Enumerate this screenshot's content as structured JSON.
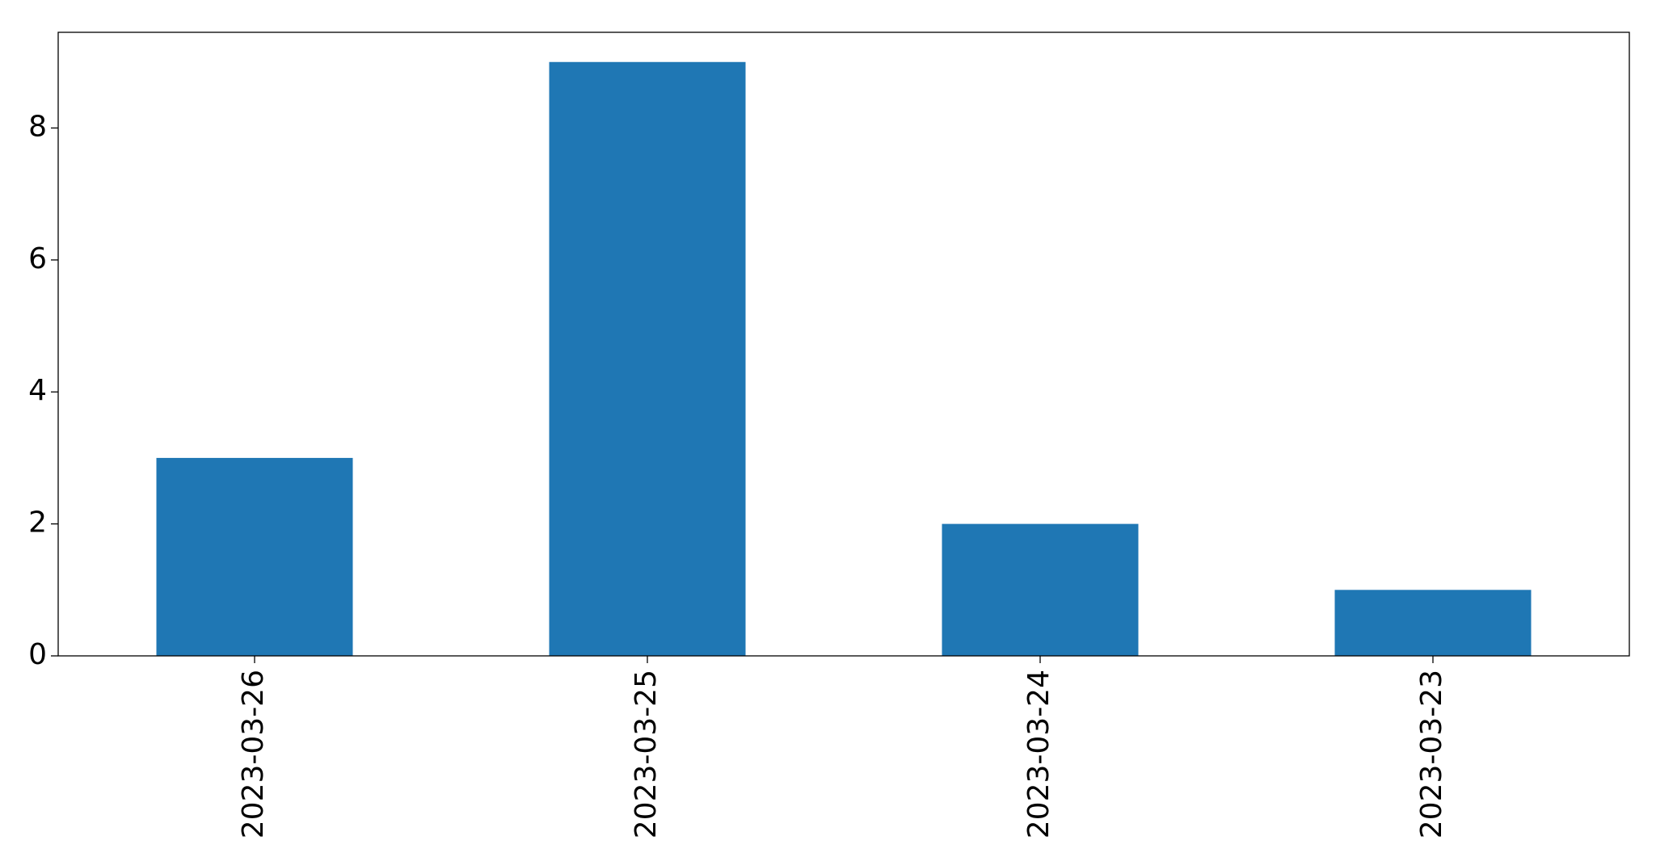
{
  "chart_data": {
    "type": "bar",
    "title": "",
    "xlabel": "",
    "ylabel": "",
    "categories": [
      "2023-03-26",
      "2023-03-25",
      "2023-03-24",
      "2023-03-23"
    ],
    "values": [
      3,
      9,
      2,
      1
    ],
    "ylim": [
      0,
      9.45
    ],
    "yticks": [
      0,
      2,
      4,
      6,
      8
    ],
    "ytick_labels": [
      "0",
      "2",
      "4",
      "6",
      "8"
    ],
    "grid": false,
    "legend": "none",
    "bar_color": "#1f77b4",
    "x_tick_rotation": "vertical"
  }
}
